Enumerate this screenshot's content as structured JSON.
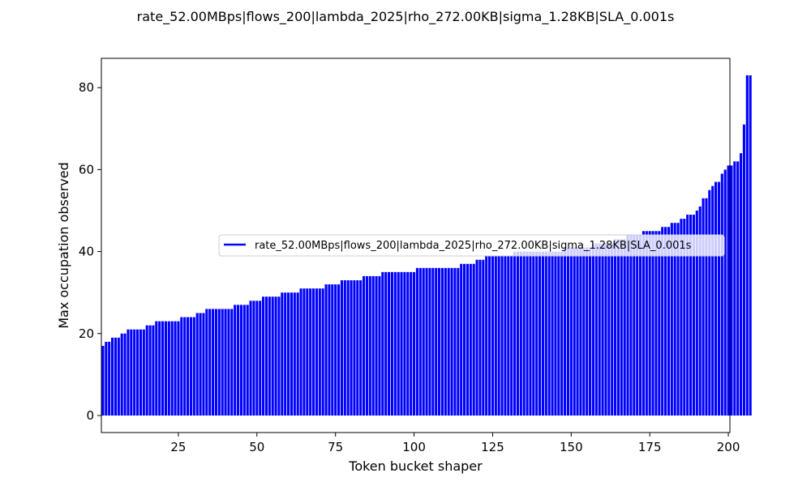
{
  "chart_data": {
    "type": "bar",
    "title": "rate_52.00MBps|flows_200|lambda_2025|rho_272.00KB|sigma_1.28KB|SLA_0.001s",
    "xlabel": "Token bucket shaper",
    "ylabel": "Max occupation observed",
    "xlim": [
      0.5,
      200.5
    ],
    "ylim": [
      -4.15,
      87.15
    ],
    "xticks": [
      25,
      50,
      75,
      100,
      125,
      150,
      175,
      200
    ],
    "yticks": [
      0,
      20,
      40,
      60,
      80
    ],
    "grid": false,
    "legend_position": "center-right",
    "bar_color": "#0000ff",
    "series": [
      {
        "name": "rate_52.00MBps|flows_200|lambda_2025|rho_272.00KB|sigma_1.28KB|SLA_0.001s",
        "x_start": 1,
        "values": [
          17,
          18,
          18,
          19,
          19,
          19,
          20,
          20,
          21,
          21,
          21,
          21,
          21,
          21,
          22,
          22,
          22,
          23,
          23,
          23,
          23,
          23,
          23,
          23,
          23,
          24,
          24,
          24,
          24,
          24,
          25,
          25,
          25,
          26,
          26,
          26,
          26,
          26,
          26,
          26,
          26,
          26,
          27,
          27,
          27,
          27,
          27,
          28,
          28,
          28,
          28,
          29,
          29,
          29,
          29,
          29,
          29,
          30,
          30,
          30,
          30,
          30,
          30,
          31,
          31,
          31,
          31,
          31,
          31,
          31,
          31,
          32,
          32,
          32,
          32,
          32,
          33,
          33,
          33,
          33,
          33,
          33,
          33,
          34,
          34,
          34,
          34,
          34,
          34,
          35,
          35,
          35,
          35,
          35,
          35,
          35,
          35,
          35,
          35,
          35,
          36,
          36,
          36,
          36,
          36,
          36,
          36,
          36,
          36,
          36,
          36,
          36,
          36,
          36,
          37,
          37,
          37,
          37,
          37,
          38,
          38,
          38,
          39,
          39,
          39,
          39,
          39,
          39,
          39,
          39,
          39,
          40,
          40,
          40,
          40,
          40,
          40,
          40,
          40,
          40,
          40,
          40,
          40,
          40,
          40,
          40,
          40,
          41,
          41,
          41,
          41,
          41,
          41,
          41,
          41,
          41,
          42,
          42,
          42,
          42,
          42,
          42,
          42,
          43,
          43,
          43,
          43,
          44,
          44,
          44,
          44,
          44,
          45,
          45,
          45,
          45,
          45,
          45,
          46,
          46,
          46,
          47,
          47,
          47,
          48,
          48,
          49,
          49,
          49,
          50,
          51,
          53,
          53,
          55,
          56,
          57,
          57,
          59,
          60,
          61,
          61,
          62,
          62,
          64,
          71,
          83,
          83
        ]
      }
    ]
  }
}
